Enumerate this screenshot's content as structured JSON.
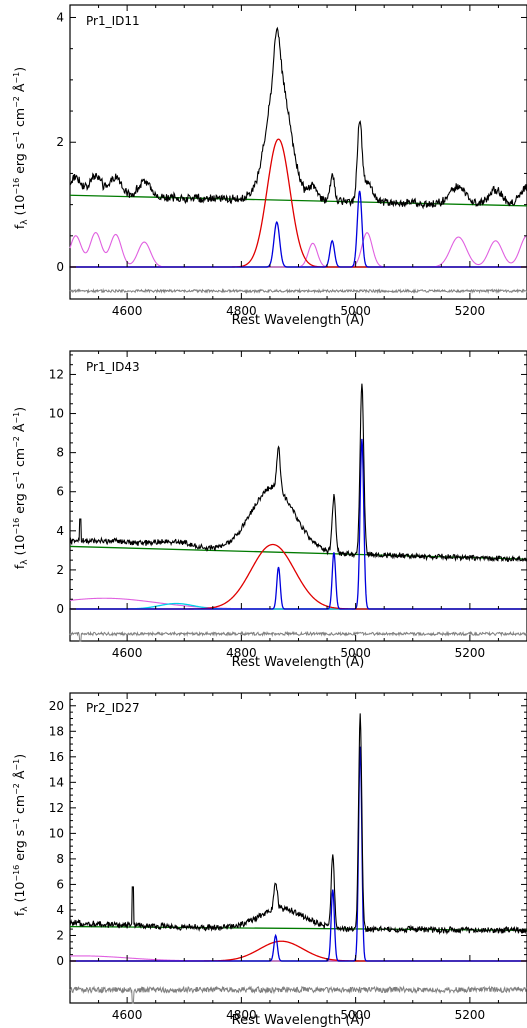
{
  "figure": {
    "xlabel": "Rest Wavelength (Å)",
    "ylabel_main": "f",
    "ylabel_sub": "λ",
    "ylabel_rest": " (10",
    "ylabel_exp1": "−16",
    "ylabel_unit1": " erg s",
    "ylabel_exp2": "−1",
    "ylabel_unit2": " cm",
    "ylabel_exp3": "−2",
    "ylabel_unit3": " Å",
    "ylabel_exp4": "−1",
    "ylabel_close": ")"
  },
  "colors": {
    "total": "#000000",
    "broad_hbeta": "#e00000",
    "narrow": "#0000dd",
    "continuum": "#007a00",
    "feii": "#e060e0",
    "heii": "#00d0e8",
    "residual": "#808080"
  },
  "chart_data": [
    {
      "type": "line",
      "panel": "Pr1_ID11",
      "xlim": [
        4500,
        5300
      ],
      "ylim": [
        0,
        4.2
      ],
      "xticks": [
        4600,
        4800,
        5000,
        5200
      ],
      "yticks": [
        0,
        2,
        4
      ],
      "continuum": {
        "x": [
          4500,
          5300
        ],
        "y": [
          1.15,
          0.98
        ]
      },
      "broad_hbeta": {
        "center": 4865,
        "amp": 2.05,
        "sigma": 20
      },
      "narrow_lines": [
        {
          "center": 4862,
          "amp": 0.72,
          "sigma": 5
        },
        {
          "center": 4959,
          "amp": 0.42,
          "sigma": 4
        },
        {
          "center": 5007,
          "amp": 1.22,
          "sigma": 4
        }
      ],
      "feii_bumps": [
        {
          "center": 4510,
          "amp": 0.5,
          "sigma": 10
        },
        {
          "center": 4545,
          "amp": 0.55,
          "sigma": 10
        },
        {
          "center": 4580,
          "amp": 0.52,
          "sigma": 10
        },
        {
          "center": 4630,
          "amp": 0.4,
          "sigma": 11
        },
        {
          "center": 4925,
          "amp": 0.38,
          "sigma": 8
        },
        {
          "center": 5020,
          "amp": 0.55,
          "sigma": 9
        },
        {
          "center": 5180,
          "amp": 0.48,
          "sigma": 14
        },
        {
          "center": 5245,
          "amp": 0.42,
          "sigma": 12
        },
        {
          "center": 5300,
          "amp": 0.5,
          "sigma": 12
        }
      ],
      "heii": null,
      "noise": 0.045,
      "spikes": [],
      "residual_ylim": [
        -0.5,
        0.5
      ],
      "residual_noise": 0.04,
      "residual_offset": -0.25
    },
    {
      "type": "line",
      "panel": "Pr1_ID43",
      "xlim": [
        4500,
        5300
      ],
      "ylim": [
        0,
        13.2
      ],
      "xticks": [
        4600,
        4800,
        5000,
        5200
      ],
      "yticks": [
        0,
        2,
        4,
        6,
        8,
        10,
        12
      ],
      "continuum": {
        "x": [
          4500,
          5300
        ],
        "y": [
          3.2,
          2.55
        ]
      },
      "broad_hbeta": {
        "center": 4855,
        "amp": 3.3,
        "sigma": 38
      },
      "narrow_lines": [
        {
          "center": 4865,
          "amp": 2.15,
          "sigma": 3
        },
        {
          "center": 4962,
          "amp": 2.9,
          "sigma": 3
        },
        {
          "center": 5011,
          "amp": 8.7,
          "sigma": 3.2
        }
      ],
      "feii_bumps": [
        {
          "center": 4560,
          "amp": 0.55,
          "sigma": 90
        }
      ],
      "heii": {
        "center": 4686,
        "amp": 0.28,
        "sigma": 30
      },
      "noise": 0.09,
      "spikes": [
        {
          "x": 4518,
          "y": 4.6
        }
      ],
      "residual_ylim": [
        -1.0,
        1.0
      ],
      "residual_noise": 0.09,
      "residual_offset": -0.55
    },
    {
      "type": "line",
      "panel": "Pr2_ID27",
      "xlim": [
        4500,
        5300
      ],
      "ylim": [
        0,
        21
      ],
      "xticks": [
        4600,
        4800,
        5000,
        5200
      ],
      "yticks": [
        0,
        2,
        4,
        6,
        8,
        10,
        12,
        14,
        16,
        18,
        20
      ],
      "continuum": {
        "x": [
          4500,
          5300
        ],
        "y": [
          2.7,
          2.4
        ]
      },
      "broad_hbeta": {
        "center": 4870,
        "amp": 1.55,
        "sigma": 38
      },
      "narrow_lines": [
        {
          "center": 4860,
          "amp": 2.0,
          "sigma": 3
        },
        {
          "center": 4960,
          "amp": 5.6,
          "sigma": 2.8
        },
        {
          "center": 5008,
          "amp": 16.8,
          "sigma": 2.8
        }
      ],
      "feii_bumps": [
        {
          "center": 4520,
          "amp": 0.4,
          "sigma": 80
        }
      ],
      "heii": null,
      "noise": 0.16,
      "spikes": [
        {
          "x": 4610,
          "y": 5.8
        }
      ],
      "residual_ylim": [
        -1.5,
        1.5
      ],
      "residual_noise": 0.2,
      "residual_offset": -0.55
    }
  ]
}
